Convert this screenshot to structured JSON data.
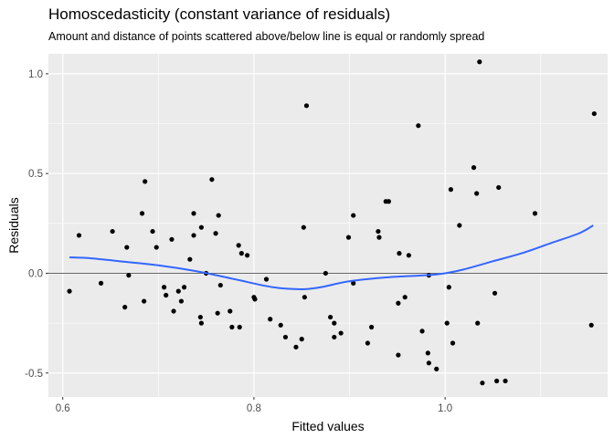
{
  "chart_data": {
    "type": "scatter",
    "title": "Homoscedasticity (constant variance of residuals)",
    "subtitle": "Amount and distance of points scattered above/below line is equal or randomly spread",
    "xlabel": "Fitted values",
    "ylabel": "Residuals",
    "xlim": [
      0.585,
      1.17
    ],
    "ylim": [
      -0.62,
      1.1
    ],
    "xticks": [
      0.6,
      0.8,
      1.0
    ],
    "xtick_labels": [
      "0.6",
      "0.8",
      "1.0"
    ],
    "yticks": [
      -0.5,
      0.0,
      0.5,
      1.0
    ],
    "ytick_labels": [
      "-0.5",
      "0.0",
      "0.5",
      "1.0"
    ],
    "reference_line_y": 0,
    "colors": {
      "panel": "#ebebeb",
      "grid": "#ffffff",
      "point": "#000000",
      "smooth": "#3366ff",
      "hline": "#333333"
    },
    "points": [
      [
        0.607,
        -0.09
      ],
      [
        0.617,
        0.19
      ],
      [
        0.64,
        -0.05
      ],
      [
        0.652,
        0.21
      ],
      [
        0.665,
        -0.17
      ],
      [
        0.667,
        0.13
      ],
      [
        0.669,
        -0.01
      ],
      [
        0.683,
        0.3
      ],
      [
        0.685,
        -0.14
      ],
      [
        0.686,
        0.46
      ],
      [
        0.694,
        0.21
      ],
      [
        0.698,
        0.13
      ],
      [
        0.706,
        -0.07
      ],
      [
        0.708,
        -0.11
      ],
      [
        0.714,
        0.17
      ],
      [
        0.716,
        -0.19
      ],
      [
        0.721,
        -0.09
      ],
      [
        0.724,
        -0.14
      ],
      [
        0.727,
        -0.07
      ],
      [
        0.733,
        0.07
      ],
      [
        0.737,
        0.3
      ],
      [
        0.737,
        0.19
      ],
      [
        0.744,
        -0.22
      ],
      [
        0.745,
        0.23
      ],
      [
        0.745,
        -0.25
      ],
      [
        0.75,
        0.0
      ],
      [
        0.756,
        0.47
      ],
      [
        0.76,
        0.2
      ],
      [
        0.763,
        0.29
      ],
      [
        0.765,
        -0.06
      ],
      [
        0.762,
        -0.2
      ],
      [
        0.775,
        -0.19
      ],
      [
        0.777,
        -0.27
      ],
      [
        0.784,
        0.14
      ],
      [
        0.785,
        -0.27
      ],
      [
        0.787,
        0.1
      ],
      [
        0.793,
        0.09
      ],
      [
        0.8,
        -0.12
      ],
      [
        0.801,
        -0.13
      ],
      [
        0.813,
        -0.03
      ],
      [
        0.817,
        -0.23
      ],
      [
        0.828,
        -0.26
      ],
      [
        0.833,
        -0.32
      ],
      [
        0.844,
        -0.37
      ],
      [
        0.85,
        -0.33
      ],
      [
        0.852,
        0.23
      ],
      [
        0.853,
        -0.12
      ],
      [
        0.855,
        0.84
      ],
      [
        0.875,
        0.0
      ],
      [
        0.88,
        -0.22
      ],
      [
        0.884,
        -0.32
      ],
      [
        0.884,
        -0.25
      ],
      [
        0.891,
        -0.3
      ],
      [
        0.899,
        0.18
      ],
      [
        0.904,
        -0.05
      ],
      [
        0.904,
        0.29
      ],
      [
        0.919,
        -0.35
      ],
      [
        0.923,
        -0.27
      ],
      [
        0.93,
        0.21
      ],
      [
        0.931,
        0.18
      ],
      [
        0.938,
        0.36
      ],
      [
        0.941,
        0.36
      ],
      [
        0.951,
        -0.41
      ],
      [
        0.951,
        -0.15
      ],
      [
        0.952,
        0.1
      ],
      [
        0.958,
        -0.12
      ],
      [
        0.962,
        0.09
      ],
      [
        0.972,
        0.74
      ],
      [
        0.976,
        -0.29
      ],
      [
        0.983,
        -0.01
      ],
      [
        0.982,
        -0.4
      ],
      [
        0.983,
        -0.45
      ],
      [
        0.991,
        -0.48
      ],
      [
        1.002,
        -0.25
      ],
      [
        1.004,
        -0.07
      ],
      [
        1.006,
        0.42
      ],
      [
        1.008,
        -0.35
      ],
      [
        1.015,
        0.24
      ],
      [
        1.03,
        0.53
      ],
      [
        1.033,
        0.4
      ],
      [
        1.034,
        -0.25
      ],
      [
        1.036,
        1.06
      ],
      [
        1.039,
        -0.55
      ],
      [
        1.052,
        -0.1
      ],
      [
        1.054,
        -0.54
      ],
      [
        1.056,
        0.43
      ],
      [
        1.063,
        -0.54
      ],
      [
        1.094,
        0.3
      ],
      [
        1.153,
        -0.26
      ],
      [
        1.156,
        0.8
      ]
    ],
    "smooth_line": [
      [
        0.607,
        0.08
      ],
      [
        0.63,
        0.075
      ],
      [
        0.66,
        0.06
      ],
      [
        0.7,
        0.04
      ],
      [
        0.74,
        0.01
      ],
      [
        0.78,
        -0.03
      ],
      [
        0.82,
        -0.07
      ],
      [
        0.85,
        -0.08
      ],
      [
        0.87,
        -0.07
      ],
      [
        0.9,
        -0.04
      ],
      [
        0.94,
        -0.02
      ],
      [
        0.98,
        -0.01
      ],
      [
        1.0,
        0.0
      ],
      [
        1.02,
        0.02
      ],
      [
        1.05,
        0.06
      ],
      [
        1.08,
        0.1
      ],
      [
        1.11,
        0.15
      ],
      [
        1.14,
        0.2
      ],
      [
        1.155,
        0.24
      ]
    ]
  }
}
